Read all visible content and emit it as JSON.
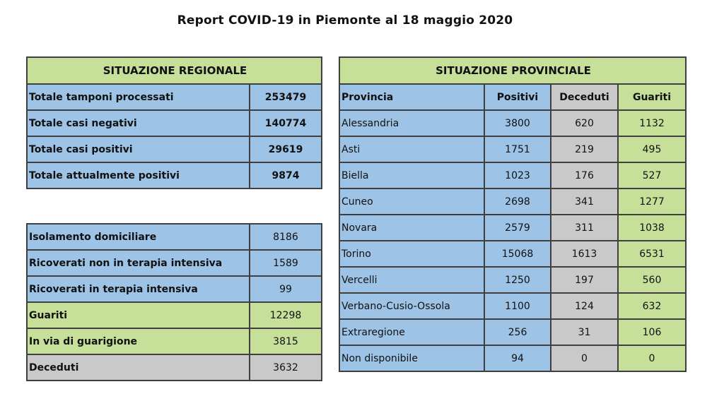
{
  "title": "Report COVID-19 in Piemonte al 18 maggio 2020",
  "colors": {
    "header_green": "#c6e09a",
    "blue": "#9dc3e6",
    "gray": "#c9c9c9",
    "border": "#3f3f3f"
  },
  "regional": {
    "header": "SITUAZIONE REGIONALE",
    "rows": [
      {
        "label": "Totale tamponi processati",
        "value": "253479"
      },
      {
        "label": "Totale casi negativi",
        "value": "140774"
      },
      {
        "label": "Totale casi positivi",
        "value": "29619"
      },
      {
        "label": "Totale attualmente positivi",
        "value": "9874"
      }
    ]
  },
  "regional_detail": {
    "rows": [
      {
        "label": "Isolamento domiciliare",
        "value": "8186"
      },
      {
        "label": "Ricoverati non in terapia intensiva",
        "value": "1589"
      },
      {
        "label": "Ricoverati in terapia intensiva",
        "value": "99"
      },
      {
        "label": "Guariti",
        "value": "12298"
      },
      {
        "label": "In via di guarigione",
        "value": "3815"
      },
      {
        "label": "Deceduti",
        "value": "3632"
      }
    ]
  },
  "provincial": {
    "header": "SITUAZIONE PROVINCIALE",
    "columns": [
      "Provincia",
      "Positivi",
      "Deceduti",
      "Guariti"
    ],
    "rows": [
      {
        "provincia": "Alessandria",
        "positivi": "3800",
        "deceduti": "620",
        "guariti": "1132"
      },
      {
        "provincia": "Asti",
        "positivi": "1751",
        "deceduti": "219",
        "guariti": "495"
      },
      {
        "provincia": "Biella",
        "positivi": "1023",
        "deceduti": "176",
        "guariti": "527"
      },
      {
        "provincia": "Cuneo",
        "positivi": "2698",
        "deceduti": "341",
        "guariti": "1277"
      },
      {
        "provincia": "Novara",
        "positivi": "2579",
        "deceduti": "311",
        "guariti": "1038"
      },
      {
        "provincia": "Torino",
        "positivi": "15068",
        "deceduti": "1613",
        "guariti": "6531"
      },
      {
        "provincia": "Vercelli",
        "positivi": "1250",
        "deceduti": "197",
        "guariti": "560"
      },
      {
        "provincia": "Verbano-Cusio-Ossola",
        "positivi": "1100",
        "deceduti": "124",
        "guariti": "632"
      },
      {
        "provincia": "Extraregione",
        "positivi": "256",
        "deceduti": "31",
        "guariti": "106"
      },
      {
        "provincia": "Non disponibile",
        "positivi": "94",
        "deceduti": "0",
        "guariti": "0"
      }
    ]
  }
}
